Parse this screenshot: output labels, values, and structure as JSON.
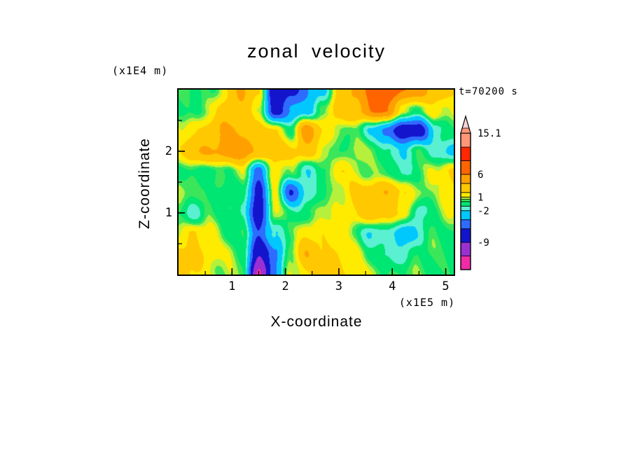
{
  "chart_data": {
    "type": "heatmap",
    "title": "zonal velocity",
    "time": "t=70200 s",
    "xlabel": "X-coordinate",
    "ylabel": "Z-coordinate",
    "x_units": "(x1E5 m)",
    "y_units": "(x1E4 m)",
    "x_range": [
      0,
      5.15
    ],
    "z_range": [
      0,
      3
    ],
    "x_ticks": [
      1,
      2,
      3,
      4,
      5
    ],
    "x_minor_ticks": [
      0.5,
      1.5,
      2.5,
      3.5,
      4.5
    ],
    "z_ticks": [
      1,
      2
    ],
    "z_minor_ticks": [
      0.5,
      1.5,
      2.5
    ],
    "levels": [
      -12,
      -9,
      -6,
      -4,
      -2,
      -1,
      0,
      0.5,
      1,
      2,
      4,
      6,
      9,
      12,
      15.1
    ],
    "colors": [
      "#F12BA5",
      "#9B30D2",
      "#1414CD",
      "#2E6BFF",
      "#00C8FF",
      "#5AF0D2",
      "#00E673",
      "#3CE65A",
      "#B4F03C",
      "#FFEB00",
      "#FFC800",
      "#FFA000",
      "#FF6400",
      "#FF2800",
      "#FF9678",
      "#F5D2D2"
    ],
    "colorbar": {
      "range": [
        -15,
        15.1
      ],
      "labels": [
        {
          "value": 15.1,
          "text": "15.1"
        },
        {
          "value": 6,
          "text": "6"
        },
        {
          "value": 1,
          "text": "1"
        },
        {
          "value": -2,
          "text": "-2"
        },
        {
          "value": -9,
          "text": "-9"
        }
      ]
    },
    "grid": {
      "x0": 0,
      "dx": 0.3,
      "z_top": 3,
      "dz": 0.3333,
      "order": "rows listed top (z=3) to bottom (z=0)",
      "values": [
        [
          0,
          0,
          0,
          2,
          4,
          2,
          -8,
          -7,
          -4,
          -3,
          2,
          5,
          6,
          7,
          6,
          5,
          4,
          2
        ],
        [
          0,
          0,
          1,
          3,
          3,
          1,
          -7,
          -4,
          -3,
          0,
          3,
          4,
          6,
          6,
          1,
          0,
          2,
          1
        ],
        [
          1,
          2,
          3,
          4,
          4,
          3,
          2,
          0,
          5,
          2,
          1,
          0,
          -2,
          -5,
          -8,
          -7,
          -2,
          0
        ],
        [
          2,
          4,
          4,
          5,
          5,
          4,
          3,
          2,
          3,
          1,
          0,
          1,
          0,
          -1,
          -2,
          0,
          -1,
          -3
        ],
        [
          0,
          0,
          -1,
          0,
          1,
          -5,
          2,
          0,
          -2,
          0,
          2,
          1,
          0,
          0,
          -1,
          0,
          1,
          2
        ],
        [
          1,
          0,
          0,
          -1,
          0,
          -7,
          1,
          -6,
          -2,
          0,
          1,
          2,
          3,
          4,
          2,
          1,
          0,
          2
        ],
        [
          0,
          -2,
          0,
          0,
          -1,
          -8,
          1,
          -1,
          0,
          1,
          1,
          2,
          3,
          3,
          2,
          -2,
          0,
          1
        ],
        [
          1,
          2,
          1,
          0,
          0,
          -6,
          -2,
          0,
          2,
          2,
          1,
          0,
          -2,
          -1,
          -3,
          -2,
          0,
          0
        ],
        [
          2,
          2,
          2,
          1,
          0,
          -9,
          -5,
          1,
          4,
          2,
          2,
          1,
          0,
          -1,
          -2,
          0,
          0,
          0
        ],
        [
          2,
          2,
          1,
          1,
          0,
          -13,
          -4,
          1,
          2,
          2,
          2,
          2,
          1,
          0,
          0,
          0,
          0,
          0
        ]
      ]
    }
  },
  "frame_color": "#000000",
  "background_color": "#FFFFFF"
}
